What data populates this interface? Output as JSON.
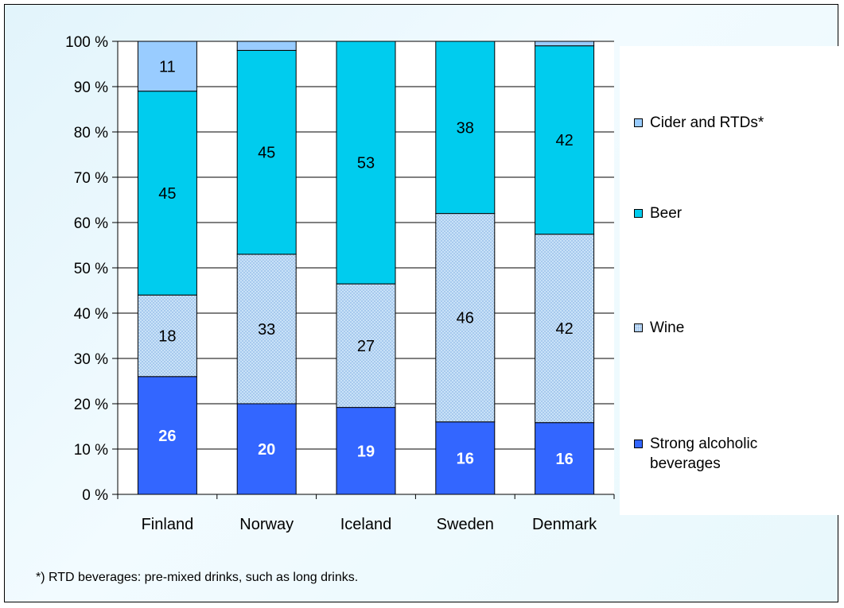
{
  "chart_data": {
    "type": "bar",
    "stacked": true,
    "percent_stacked": true,
    "categories": [
      "Finland",
      "Norway",
      "Iceland",
      "Sweden",
      "Denmark"
    ],
    "series": [
      {
        "name": "Strong alcoholic beverages",
        "values": [
          26,
          20,
          19,
          16,
          16
        ],
        "shown": [
          26,
          20,
          19,
          16,
          16
        ],
        "color": "#3366ff",
        "label_color": "#ffffff",
        "label_bold": true,
        "pattern": "solid"
      },
      {
        "name": "Wine",
        "values": [
          18,
          33,
          27,
          46,
          42
        ],
        "shown": [
          18,
          33,
          27,
          46,
          42
        ],
        "color": "#bcd9f5",
        "label_color": "#000000",
        "label_bold": false,
        "pattern": "dotted"
      },
      {
        "name": "Beer",
        "values": [
          45,
          45,
          53,
          38,
          42
        ],
        "shown": [
          45,
          45,
          53,
          38,
          42
        ],
        "color": "#00ccee",
        "label_color": "#000000",
        "label_bold": false,
        "pattern": "solid"
      },
      {
        "name": "Cider and RTDs*",
        "values": [
          11,
          2,
          0,
          0,
          1
        ],
        "shown": [
          11,
          null,
          null,
          null,
          null
        ],
        "color": "#99ccff",
        "label_color": "#000000",
        "label_bold": false,
        "pattern": "solid"
      }
    ],
    "y_ticks": [
      "0 %",
      "10 %",
      "20 %",
      "30 %",
      "40 %",
      "50 %",
      "60 %",
      "70 %",
      "80 %",
      "90 %",
      "100 %"
    ],
    "ylim": [
      0,
      100
    ],
    "grid": true,
    "legend_position": "right"
  },
  "footnote": "*) RTD beverages: pre-mixed drinks, such as long drinks.",
  "colors": {
    "background": "#e8f8fc",
    "plot_background": "#ffffff",
    "legend_background": "#ffffff",
    "gridline": "#000000",
    "border": "#000000"
  }
}
